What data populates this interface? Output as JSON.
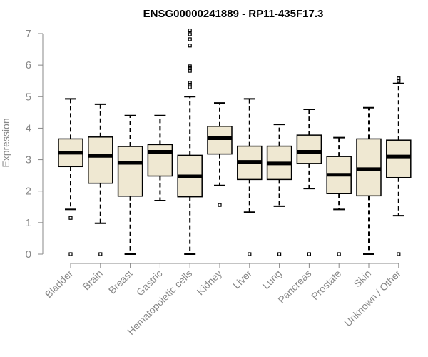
{
  "chart_data": {
    "type": "boxplot",
    "title": "ENSG00000241889 - RP11-435F17.3",
    "xlabel": "",
    "ylabel": "Expression",
    "ylim": [
      0,
      7
    ],
    "yticks": [
      0,
      1,
      2,
      3,
      4,
      5,
      6,
      7
    ],
    "box_fill": "#efe8d2",
    "categories": [
      "Bladder",
      "Brain",
      "Breast",
      "Gastric",
      "Hematopoietic cells",
      "Kidney",
      "Liver",
      "Lung",
      "Pancreas",
      "Prostate",
      "Skin",
      "Unknown / Other"
    ],
    "boxes": [
      {
        "q1": 2.78,
        "median": 3.22,
        "q3": 3.66,
        "low": 1.42,
        "high": 4.93,
        "outliers": [
          1.15,
          0.0
        ]
      },
      {
        "q1": 2.25,
        "median": 3.12,
        "q3": 3.72,
        "low": 0.98,
        "high": 4.76,
        "outliers": [
          0.0
        ]
      },
      {
        "q1": 1.84,
        "median": 2.9,
        "q3": 3.42,
        "low": 0.0,
        "high": 4.4,
        "outliers": []
      },
      {
        "q1": 2.48,
        "median": 3.25,
        "q3": 3.48,
        "low": 1.7,
        "high": 4.4,
        "outliers": []
      },
      {
        "q1": 1.82,
        "median": 2.47,
        "q3": 3.14,
        "low": 0.0,
        "high": 5.0,
        "outliers": [
          5.3,
          5.38,
          5.44,
          5.82,
          5.9,
          5.96,
          6.62,
          6.82,
          6.98,
          7.1
        ]
      },
      {
        "q1": 3.18,
        "median": 3.68,
        "q3": 4.06,
        "low": 2.18,
        "high": 4.8,
        "outliers": [
          1.56
        ]
      },
      {
        "q1": 2.37,
        "median": 2.93,
        "q3": 3.43,
        "low": 1.33,
        "high": 4.93,
        "outliers": [
          0.0
        ]
      },
      {
        "q1": 2.37,
        "median": 2.88,
        "q3": 3.43,
        "low": 1.52,
        "high": 4.12,
        "outliers": [
          0.0
        ]
      },
      {
        "q1": 2.88,
        "median": 3.25,
        "q3": 3.78,
        "low": 2.08,
        "high": 4.6,
        "outliers": [
          0.0
        ]
      },
      {
        "q1": 1.92,
        "median": 2.52,
        "q3": 3.1,
        "low": 1.42,
        "high": 3.7,
        "outliers": [
          0.0
        ]
      },
      {
        "q1": 1.85,
        "median": 2.7,
        "q3": 3.66,
        "low": 0.0,
        "high": 4.65,
        "outliers": []
      },
      {
        "q1": 2.43,
        "median": 3.1,
        "q3": 3.62,
        "low": 1.22,
        "high": 5.42,
        "outliers": [
          0.0,
          5.5,
          5.58
        ]
      }
    ]
  }
}
